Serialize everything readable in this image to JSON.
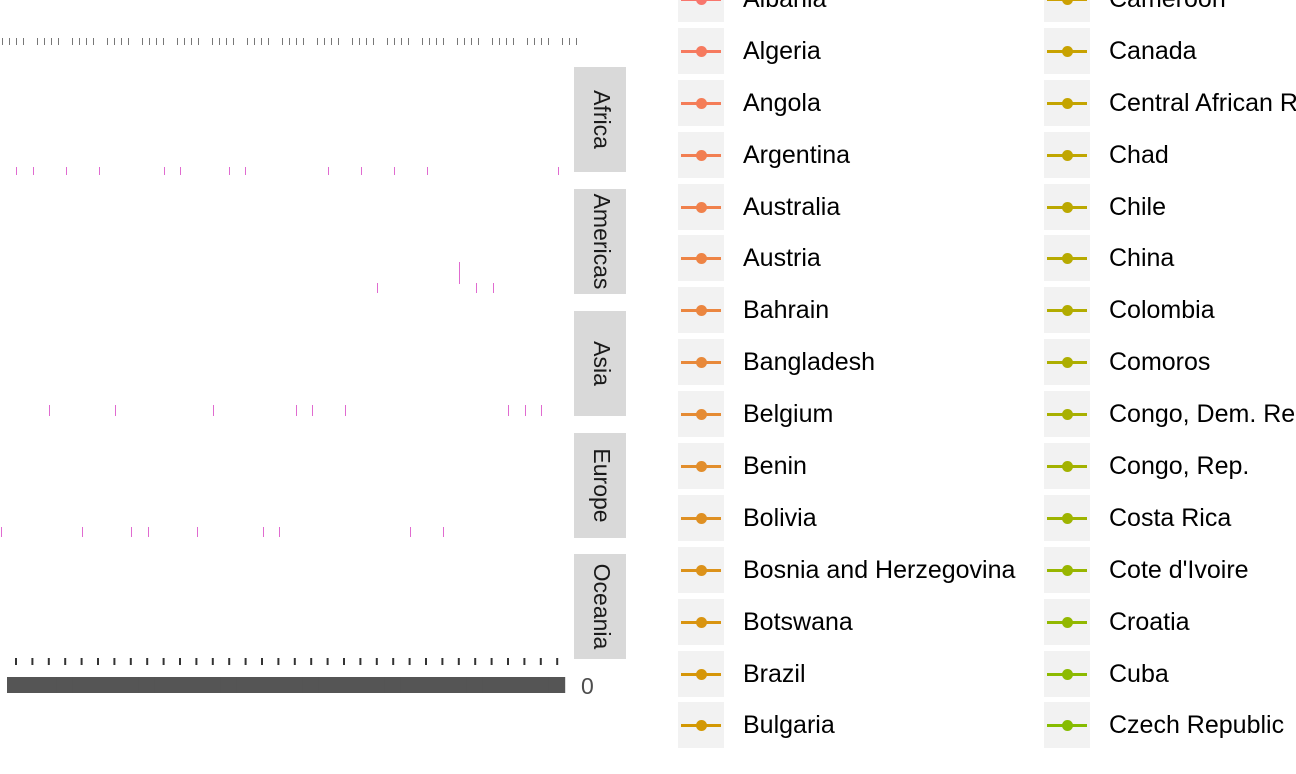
{
  "chart_data": {
    "type": "line",
    "facets": [
      "Africa",
      "Americas",
      "Asia",
      "Europe",
      "Oceania"
    ],
    "legend_position": "right",
    "legend": {
      "column1": [
        {
          "label": "Albania",
          "color": "#F8766D"
        },
        {
          "label": "Algeria",
          "color": "#F67A5F"
        },
        {
          "label": "Angola",
          "color": "#F47D58"
        },
        {
          "label": "Argentina",
          "color": "#F27F52"
        },
        {
          "label": "Australia",
          "color": "#F0814C"
        },
        {
          "label": "Austria",
          "color": "#EE8445"
        },
        {
          "label": "Bahrain",
          "color": "#EB8640"
        },
        {
          "label": "Bangladesh",
          "color": "#E8893A"
        },
        {
          "label": "Belgium",
          "color": "#E58B33"
        },
        {
          "label": "Benin",
          "color": "#E28E2C"
        },
        {
          "label": "Bolivia",
          "color": "#DF9023"
        },
        {
          "label": "Bosnia and Herzegovina",
          "color": "#DC921A"
        },
        {
          "label": "Botswana",
          "color": "#D99410"
        },
        {
          "label": "Brazil",
          "color": "#D69608"
        },
        {
          "label": "Bulgaria",
          "color": "#D39803"
        }
      ],
      "column2": [
        {
          "label": "Cameroon",
          "color": "#CCA002"
        },
        {
          "label": "Canada",
          "color": "#C8A200"
        },
        {
          "label": "Central African R",
          "color": "#C4A400"
        },
        {
          "label": "Chad",
          "color": "#C0A600"
        },
        {
          "label": "Chile",
          "color": "#BBA800"
        },
        {
          "label": "China",
          "color": "#B7AA00"
        },
        {
          "label": "Colombia",
          "color": "#B2AC00"
        },
        {
          "label": "Comoros",
          "color": "#ADAE00"
        },
        {
          "label": "Congo, Dem. Re",
          "color": "#A8B000"
        },
        {
          "label": "Congo, Rep.",
          "color": "#A3B200"
        },
        {
          "label": "Costa Rica",
          "color": "#9EB400"
        },
        {
          "label": "Cote d'Ivoire",
          "color": "#98B600"
        },
        {
          "label": "Croatia",
          "color": "#92B800"
        },
        {
          "label": "Cuba",
          "color": "#8CBA00"
        },
        {
          "label": "Czech Republic",
          "color": "#86BC00"
        }
      ]
    },
    "x_axis": {
      "visible_tick_label": "0"
    }
  }
}
